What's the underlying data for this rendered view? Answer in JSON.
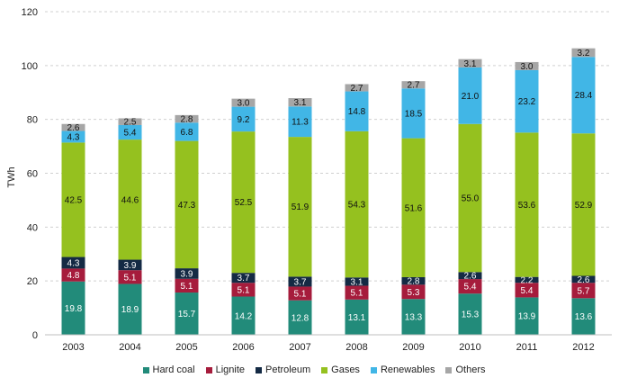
{
  "chart_data": {
    "type": "bar",
    "stacked": true,
    "ylabel": "TWh",
    "ylim": [
      0,
      120
    ],
    "yticks": [
      0,
      20,
      40,
      60,
      80,
      100,
      120
    ],
    "grid": true,
    "legend_position": "bottom",
    "categories": [
      "2003",
      "2004",
      "2005",
      "2006",
      "2007",
      "2008",
      "2009",
      "2010",
      "2011",
      "2012"
    ],
    "series": [
      {
        "name": "Hard coal",
        "color": "#228b7a",
        "label_color": "#ffffff",
        "values": [
          19.8,
          18.9,
          15.7,
          14.2,
          12.8,
          13.1,
          13.3,
          15.3,
          13.9,
          13.6
        ]
      },
      {
        "name": "Lignite",
        "color": "#a61c3c",
        "label_color": "#ffffff",
        "values": [
          4.8,
          5.1,
          5.1,
          5.1,
          5.1,
          5.1,
          5.3,
          5.4,
          5.4,
          5.7
        ]
      },
      {
        "name": "Petroleum",
        "color": "#142a44",
        "label_color": "#ffffff",
        "values": [
          4.3,
          3.9,
          3.9,
          3.7,
          3.7,
          3.1,
          2.8,
          2.6,
          2.2,
          2.6
        ]
      },
      {
        "name": "Gases",
        "color": "#95c11f",
        "label_color": "#111111",
        "values": [
          42.5,
          44.6,
          47.3,
          52.5,
          51.9,
          54.3,
          51.6,
          55.0,
          53.6,
          52.9
        ]
      },
      {
        "name": "Renewables",
        "color": "#41b6e6",
        "label_color": "#111111",
        "values": [
          4.3,
          5.4,
          6.8,
          9.2,
          11.3,
          14.8,
          18.5,
          21.0,
          23.2,
          28.4
        ]
      },
      {
        "name": "Others",
        "color": "#a6a6a6",
        "label_color": "#111111",
        "values": [
          2.6,
          2.5,
          2.8,
          3.0,
          3.1,
          2.7,
          2.7,
          3.1,
          3.0,
          3.2
        ]
      }
    ]
  }
}
